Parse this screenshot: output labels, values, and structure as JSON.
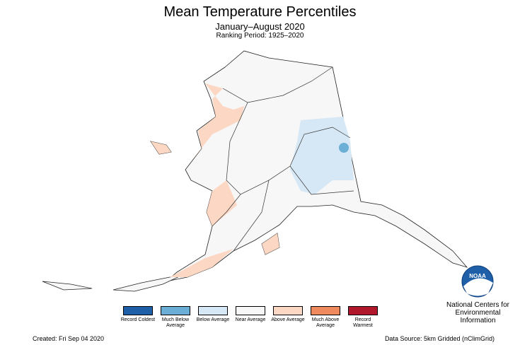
{
  "header": {
    "title": "Mean Temperature Percentiles",
    "subtitle": "January–August 2020",
    "ranking": "Ranking Period: 1925–2020"
  },
  "legend": [
    {
      "label": "Record Coldest",
      "color": "#1f5fa8"
    },
    {
      "label": "Much Below Average",
      "color": "#6baed6"
    },
    {
      "label": "Below Average",
      "color": "#d6e8f5"
    },
    {
      "label": "Near Average",
      "color": "#f7f7f7"
    },
    {
      "label": "Above Average",
      "color": "#fcd7c3"
    },
    {
      "label": "Much Above Average",
      "color": "#ef8a5e"
    },
    {
      "label": "Record Warmest",
      "color": "#b2182b"
    }
  ],
  "logo": {
    "text": "NOAA",
    "agency": "National Centers for Environmental Information"
  },
  "footer": {
    "created": "Created: Fri Sep 04 2020",
    "source": "Data Source: 5km Gridded (nClimGrid)"
  }
}
